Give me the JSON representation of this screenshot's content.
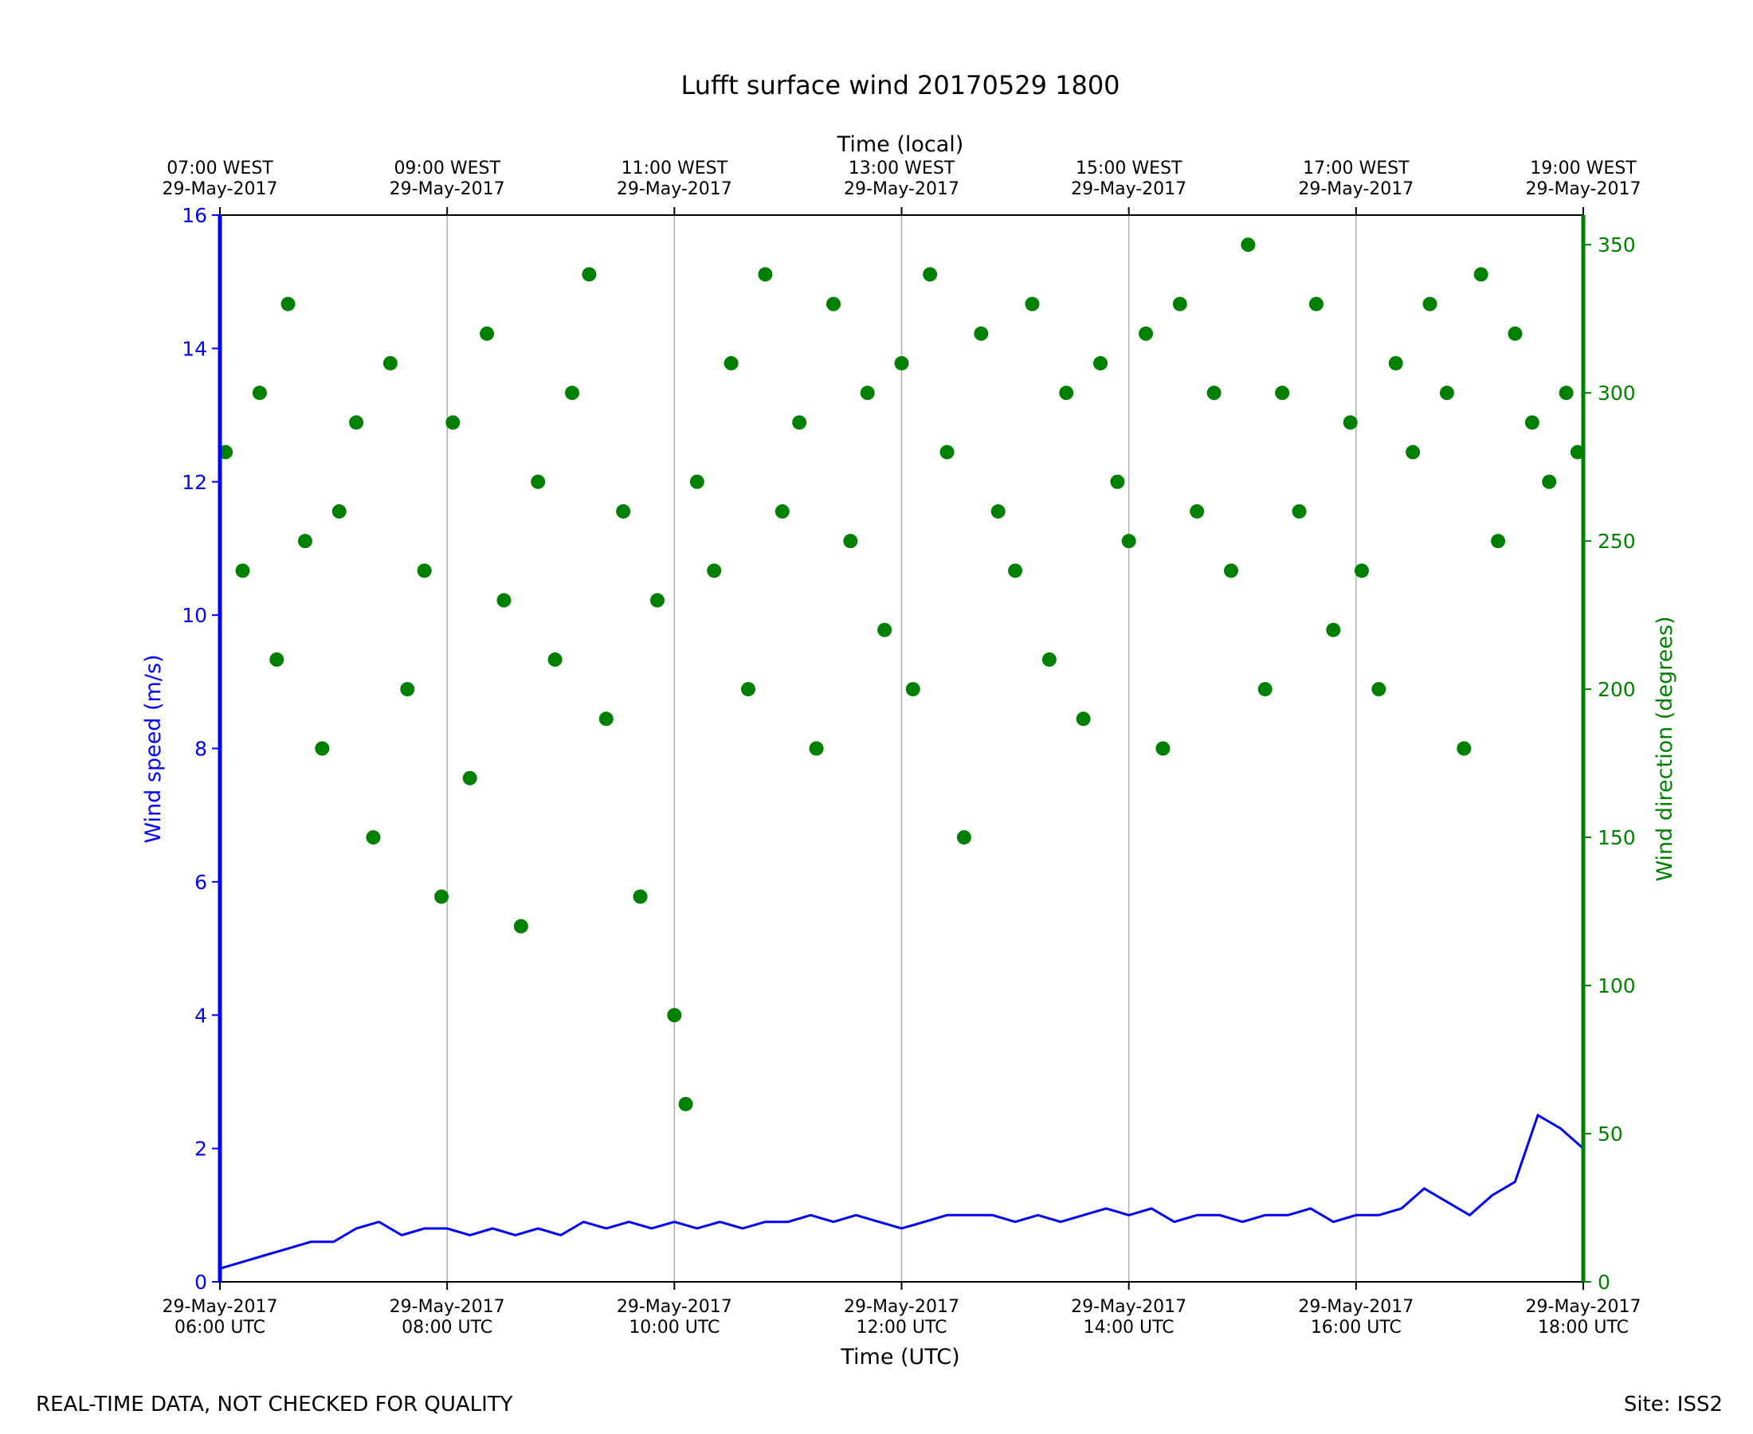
{
  "chart_data": {
    "type": "line+scatter",
    "title": "Lufft surface wind 20170529 1800",
    "xlabel": "Time (UTC)",
    "xlabel_top": "Time (local)",
    "ylabel": "Wind speed (m/s)",
    "ylabel_right": "Wind direction (degrees)",
    "ylim": [
      0,
      16
    ],
    "ylim_right": [
      0,
      360
    ],
    "xlim": [
      "2017-05-29 06:00",
      "2017-05-29 18:00"
    ],
    "x_unit": "UTC hour",
    "yticks": [
      "0",
      "2",
      "4",
      "6",
      "8",
      "10",
      "12",
      "14",
      "16"
    ],
    "yticks_right": [
      "0",
      "50",
      "100",
      "150",
      "200",
      "250",
      "300",
      "350"
    ],
    "xticks_bottom": [
      {
        "date": "29-May-2017",
        "time": "06:00 UTC"
      },
      {
        "date": "29-May-2017",
        "time": "08:00 UTC"
      },
      {
        "date": "29-May-2017",
        "time": "10:00 UTC"
      },
      {
        "date": "29-May-2017",
        "time": "12:00 UTC"
      },
      {
        "date": "29-May-2017",
        "time": "14:00 UTC"
      },
      {
        "date": "29-May-2017",
        "time": "16:00 UTC"
      },
      {
        "date": "29-May-2017",
        "time": "18:00 UTC"
      }
    ],
    "xticks_top": [
      {
        "time": "07:00 WEST",
        "date": "29-May-2017"
      },
      {
        "time": "09:00 WEST",
        "date": "29-May-2017"
      },
      {
        "time": "11:00 WEST",
        "date": "29-May-2017"
      },
      {
        "time": "13:00 WEST",
        "date": "29-May-2017"
      },
      {
        "time": "15:00 WEST",
        "date": "29-May-2017"
      },
      {
        "time": "17:00 WEST",
        "date": "29-May-2017"
      },
      {
        "time": "19:00 WEST",
        "date": "29-May-2017"
      }
    ],
    "grid": "vertical lines at bottom ticks",
    "series": [
      {
        "kind": "line",
        "axis": "left",
        "color": "#0000ff",
        "x": [
          6.0,
          6.2,
          6.4,
          6.6,
          6.8,
          7.0,
          7.2,
          7.4,
          7.6,
          7.8,
          8.0,
          8.2,
          8.4,
          8.6,
          8.8,
          9.0,
          9.2,
          9.4,
          9.6,
          9.8,
          10.0,
          10.2,
          10.4,
          10.6,
          10.8,
          11.0,
          11.2,
          11.4,
          11.6,
          11.8,
          12.0,
          12.2,
          12.4,
          12.6,
          12.8,
          13.0,
          13.2,
          13.4,
          13.6,
          13.8,
          14.0,
          14.2,
          14.4,
          14.6,
          14.8,
          15.0,
          15.2,
          15.4,
          15.6,
          15.8,
          16.0,
          16.2,
          16.4,
          16.6,
          16.8,
          17.0,
          17.2,
          17.4,
          17.6,
          17.8,
          18.0
        ],
        "y": [
          0.2,
          0.3,
          0.4,
          0.5,
          0.6,
          0.6,
          0.8,
          0.9,
          0.7,
          0.8,
          0.8,
          0.7,
          0.8,
          0.7,
          0.8,
          0.7,
          0.9,
          0.8,
          0.9,
          0.8,
          0.9,
          0.8,
          0.9,
          0.8,
          0.9,
          0.9,
          1.0,
          0.9,
          1.0,
          0.9,
          0.8,
          0.9,
          1.0,
          1.0,
          1.0,
          0.9,
          1.0,
          0.9,
          1.0,
          1.1,
          1.0,
          1.1,
          0.9,
          1.0,
          1.0,
          0.9,
          1.0,
          1.0,
          1.1,
          0.9,
          1.0,
          1.0,
          1.1,
          1.4,
          1.2,
          1.0,
          1.3,
          1.5,
          2.5,
          2.3,
          2.0
        ]
      },
      {
        "kind": "scatter",
        "axis": "right",
        "color": "#008000",
        "x": [
          6.05,
          6.2,
          6.35,
          6.5,
          6.6,
          6.75,
          6.9,
          7.05,
          7.2,
          7.35,
          7.5,
          7.65,
          7.8,
          7.95,
          8.05,
          8.2,
          8.35,
          8.5,
          8.65,
          8.8,
          8.95,
          9.1,
          9.25,
          9.4,
          9.55,
          9.7,
          9.85,
          10.0,
          10.1,
          10.2,
          10.35,
          10.5,
          10.65,
          10.8,
          10.95,
          11.1,
          11.25,
          11.4,
          11.55,
          11.7,
          11.85,
          12.0,
          12.1,
          12.25,
          12.4,
          12.55,
          12.7,
          12.85,
          13.0,
          13.15,
          13.3,
          13.45,
          13.6,
          13.75,
          13.9,
          14.0,
          14.15,
          14.3,
          14.45,
          14.6,
          14.75,
          14.9,
          15.05,
          15.2,
          15.35,
          15.5,
          15.65,
          15.8,
          15.95,
          16.05,
          16.2,
          16.35,
          16.5,
          16.65,
          16.8,
          16.95,
          17.1,
          17.25,
          17.4,
          17.55,
          17.7,
          17.85,
          17.95
        ],
        "y": [
          280,
          240,
          300,
          210,
          330,
          250,
          180,
          260,
          290,
          150,
          310,
          200,
          240,
          130,
          290,
          170,
          320,
          230,
          120,
          270,
          210,
          300,
          340,
          190,
          260,
          130,
          230,
          90,
          60,
          270,
          240,
          310,
          200,
          340,
          260,
          290,
          180,
          330,
          250,
          300,
          220,
          310,
          200,
          340,
          280,
          150,
          320,
          260,
          240,
          330,
          210,
          300,
          190,
          310,
          270,
          250,
          320,
          180,
          330,
          260,
          300,
          240,
          350,
          200,
          300,
          260,
          330,
          220,
          290,
          240,
          200,
          310,
          280,
          330,
          300,
          180,
          340,
          250,
          320,
          290,
          270,
          300,
          280
        ]
      }
    ]
  },
  "footer": {
    "left": "REAL-TIME DATA, NOT CHECKED FOR QUALITY",
    "right": "Site: ISS2"
  }
}
